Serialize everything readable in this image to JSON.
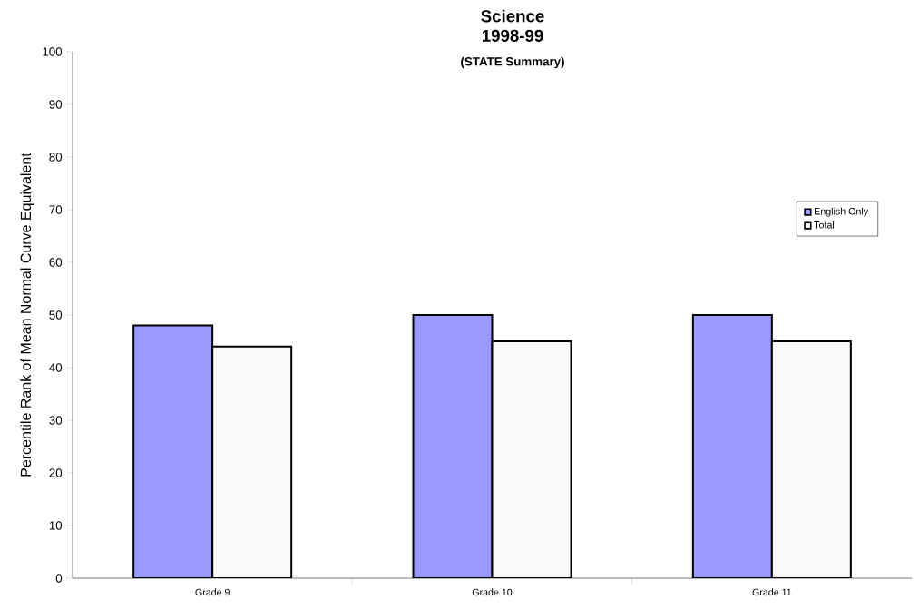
{
  "chart_data": {
    "type": "bar",
    "title": "Science",
    "subtitle": "1998-99",
    "annotations": [
      "(STATE Summary)"
    ],
    "ylabel": "Percentile  Rank  of  Mean  Normal  Curve  Equivalent",
    "categories": [
      "Grade 9",
      "Grade 10",
      "Grade 11"
    ],
    "series": [
      {
        "name": "English  Only",
        "color": "#9999ff",
        "values": [
          48,
          50,
          50
        ]
      },
      {
        "name": "Total",
        "color": "#fbf8f8",
        "values": [
          44,
          45,
          45
        ]
      }
    ],
    "ylim": [
      0,
      100
    ],
    "yticks": [
      0,
      10,
      20,
      30,
      40,
      50,
      60,
      70,
      80,
      90,
      100
    ],
    "grid": false,
    "legend": "right"
  }
}
